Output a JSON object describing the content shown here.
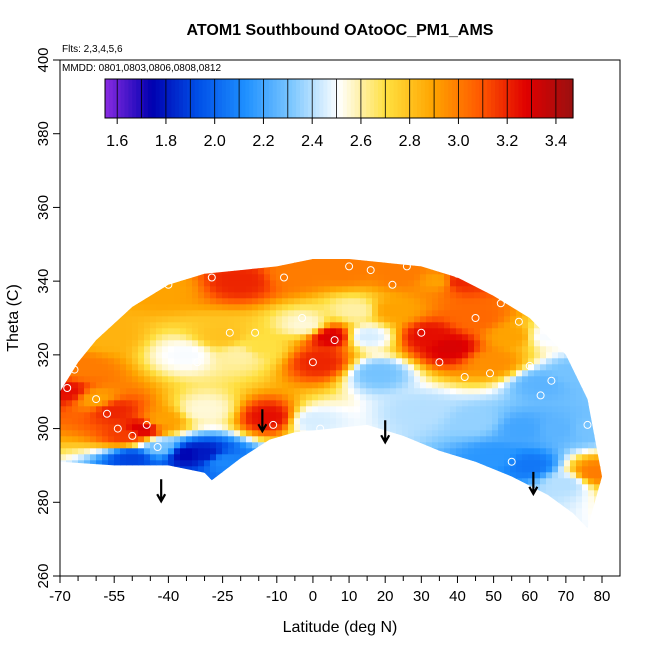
{
  "chart_data": {
    "type": "heatmap",
    "title": "ATOM1 Southbound OAtoOC_PM1_AMS",
    "annotations": {
      "flights": "Flts: 2,3,4,5,6",
      "dates": "MMDD: 0801,0803,0806,0808,0812"
    },
    "xlabel": "Latitude (deg N)",
    "ylabel": "Theta (C)",
    "xlim": [
      -70,
      80
    ],
    "ylim": [
      260,
      400
    ],
    "x_ticks": [
      "-70",
      "-55",
      "-40",
      "-25",
      "-10",
      "0",
      "10",
      "20",
      "30",
      "40",
      "50",
      "60",
      "70",
      "80"
    ],
    "x_tick_values": [
      -70,
      -55,
      -40,
      -25,
      -10,
      0,
      10,
      20,
      30,
      40,
      50,
      60,
      70,
      80
    ],
    "x_minor_ticks": [
      -65,
      -60,
      -50,
      -45,
      -35,
      -30,
      -20,
      -15,
      -5,
      5,
      15,
      25,
      35,
      45,
      55,
      65,
      75
    ],
    "y_ticks": [
      "260",
      "280",
      "300",
      "320",
      "340",
      "360",
      "380",
      "400"
    ],
    "y_tick_values": [
      260,
      280,
      300,
      320,
      340,
      360,
      380,
      400
    ],
    "colorbar": {
      "range": [
        1.55,
        3.47
      ],
      "ticks": [
        "1.6",
        "1.8",
        "2.0",
        "2.2",
        "2.4",
        "2.6",
        "2.8",
        "3.0",
        "3.2",
        "3.4"
      ],
      "tick_values": [
        1.6,
        1.8,
        2.0,
        2.2,
        2.4,
        2.6,
        2.8,
        3.0,
        3.2,
        3.4
      ],
      "colors": [
        "#8a2be2",
        "#0000b0",
        "#0050e8",
        "#1e90ff",
        "#7ec8ff",
        "#ffffff",
        "#ffe040",
        "#ffa500",
        "#ff5a00",
        "#e00000",
        "#9a1010"
      ]
    },
    "arrows": [
      {
        "lat": -42,
        "theta": 283
      },
      {
        "lat": -14,
        "theta": 302
      },
      {
        "lat": 20,
        "theta": 299
      },
      {
        "lat": 61,
        "theta": 285
      }
    ],
    "boundary_top": [
      [
        -70,
        310
      ],
      [
        -65,
        318
      ],
      [
        -60,
        324
      ],
      [
        -50,
        333
      ],
      [
        -40,
        339
      ],
      [
        -30,
        342
      ],
      [
        -20,
        343
      ],
      [
        -10,
        344
      ],
      [
        0,
        346
      ],
      [
        10,
        346
      ],
      [
        20,
        345
      ],
      [
        30,
        344
      ],
      [
        40,
        341
      ],
      [
        50,
        336
      ],
      [
        60,
        330
      ],
      [
        70,
        320
      ],
      [
        76,
        308
      ],
      [
        80,
        287
      ]
    ],
    "boundary_bottom": [
      [
        -70,
        291
      ],
      [
        -55,
        290
      ],
      [
        -40,
        290
      ],
      [
        -30,
        288
      ],
      [
        -28,
        286
      ],
      [
        -20,
        292
      ],
      [
        -12,
        297
      ],
      [
        -5,
        299
      ],
      [
        5,
        300
      ],
      [
        15,
        301
      ],
      [
        25,
        298
      ],
      [
        35,
        294
      ],
      [
        45,
        291
      ],
      [
        55,
        287
      ],
      [
        65,
        282
      ],
      [
        72,
        277
      ],
      [
        76,
        273
      ],
      [
        80,
        287
      ]
    ],
    "control_points": [
      {
        "lat": -68,
        "theta": 310,
        "value": 3.25
      },
      {
        "lat": -64,
        "theta": 316,
        "value": 3.0
      },
      {
        "lat": -60,
        "theta": 308,
        "value": 2.9
      },
      {
        "lat": -55,
        "theta": 305,
        "value": 3.2
      },
      {
        "lat": -52,
        "theta": 298,
        "value": 3.15
      },
      {
        "lat": -47,
        "theta": 300,
        "value": 3.3
      },
      {
        "lat": -42,
        "theta": 302,
        "value": 2.9
      },
      {
        "lat": -42,
        "theta": 295,
        "value": 2.3
      },
      {
        "lat": -50,
        "theta": 292,
        "value": 1.9
      },
      {
        "lat": -35,
        "theta": 293,
        "value": 1.75
      },
      {
        "lat": -30,
        "theta": 293,
        "value": 1.8
      },
      {
        "lat": -25,
        "theta": 291,
        "value": 2.1
      },
      {
        "lat": -58,
        "theta": 325,
        "value": 2.85
      },
      {
        "lat": -42,
        "theta": 338,
        "value": 2.9
      },
      {
        "lat": -35,
        "theta": 320,
        "value": 2.5
      },
      {
        "lat": -30,
        "theta": 305,
        "value": 2.55
      },
      {
        "lat": -25,
        "theta": 325,
        "value": 2.8
      },
      {
        "lat": -20,
        "theta": 340,
        "value": 3.2
      },
      {
        "lat": -20,
        "theta": 320,
        "value": 2.6
      },
      {
        "lat": -12,
        "theta": 303,
        "value": 3.25
      },
      {
        "lat": -15,
        "theta": 322,
        "value": 2.7
      },
      {
        "lat": -5,
        "theta": 342,
        "value": 3.0
      },
      {
        "lat": -2,
        "theta": 328,
        "value": 2.55
      },
      {
        "lat": 2,
        "theta": 318,
        "value": 3.2
      },
      {
        "lat": 5,
        "theta": 325,
        "value": 3.3
      },
      {
        "lat": 0,
        "theta": 302,
        "value": 2.45
      },
      {
        "lat": 8,
        "theta": 343,
        "value": 3.0
      },
      {
        "lat": 12,
        "theta": 332,
        "value": 2.6
      },
      {
        "lat": 15,
        "theta": 325,
        "value": 2.45
      },
      {
        "lat": 18,
        "theta": 315,
        "value": 2.3
      },
      {
        "lat": 22,
        "theta": 332,
        "value": 2.9
      },
      {
        "lat": 25,
        "theta": 342,
        "value": 3.0
      },
      {
        "lat": 32,
        "theta": 325,
        "value": 3.25
      },
      {
        "lat": 38,
        "theta": 322,
        "value": 3.3
      },
      {
        "lat": 40,
        "theta": 340,
        "value": 3.2
      },
      {
        "lat": 45,
        "theta": 330,
        "value": 3.05
      },
      {
        "lat": 50,
        "theta": 318,
        "value": 2.95
      },
      {
        "lat": 55,
        "theta": 325,
        "value": 2.9
      },
      {
        "lat": 65,
        "theta": 325,
        "value": 2.5
      },
      {
        "lat": 63,
        "theta": 312,
        "value": 2.25
      },
      {
        "lat": 58,
        "theta": 300,
        "value": 2.2
      },
      {
        "lat": 45,
        "theta": 302,
        "value": 2.35
      },
      {
        "lat": 30,
        "theta": 305,
        "value": 2.4
      },
      {
        "lat": 50,
        "theta": 292,
        "value": 2.15
      },
      {
        "lat": 60,
        "theta": 290,
        "value": 2.05
      },
      {
        "lat": 68,
        "theta": 300,
        "value": 2.25
      },
      {
        "lat": 72,
        "theta": 315,
        "value": 2.3
      },
      {
        "lat": 76,
        "theta": 300,
        "value": 2.3
      },
      {
        "lat": 78,
        "theta": 288,
        "value": 3.0
      },
      {
        "lat": 70,
        "theta": 285,
        "value": 2.4
      },
      {
        "lat": 35,
        "theta": 340,
        "value": 2.9
      }
    ],
    "sample_points": [
      {
        "lat": -68,
        "theta": 311
      },
      {
        "lat": -66,
        "theta": 316
      },
      {
        "lat": -60,
        "theta": 308
      },
      {
        "lat": -57,
        "theta": 304
      },
      {
        "lat": -54,
        "theta": 300
      },
      {
        "lat": -50,
        "theta": 298
      },
      {
        "lat": -46,
        "theta": 301
      },
      {
        "lat": -43,
        "theta": 295
      },
      {
        "lat": -40,
        "theta": 339
      },
      {
        "lat": -36,
        "theta": 342
      },
      {
        "lat": -32,
        "theta": 318
      },
      {
        "lat": -28,
        "theta": 341
      },
      {
        "lat": -23,
        "theta": 326
      },
      {
        "lat": -16,
        "theta": 326
      },
      {
        "lat": -11,
        "theta": 301
      },
      {
        "lat": -8,
        "theta": 341
      },
      {
        "lat": -3,
        "theta": 330
      },
      {
        "lat": 0,
        "theta": 318
      },
      {
        "lat": 2,
        "theta": 300
      },
      {
        "lat": 6,
        "theta": 324
      },
      {
        "lat": 10,
        "theta": 344
      },
      {
        "lat": 16,
        "theta": 343
      },
      {
        "lat": 18,
        "theta": 298
      },
      {
        "lat": 22,
        "theta": 339
      },
      {
        "lat": 26,
        "theta": 344
      },
      {
        "lat": 30,
        "theta": 326
      },
      {
        "lat": 35,
        "theta": 318
      },
      {
        "lat": 40,
        "theta": 342
      },
      {
        "lat": 42,
        "theta": 314
      },
      {
        "lat": 45,
        "theta": 330
      },
      {
        "lat": 49,
        "theta": 315
      },
      {
        "lat": 52,
        "theta": 334
      },
      {
        "lat": 55,
        "theta": 291
      },
      {
        "lat": 57,
        "theta": 329
      },
      {
        "lat": 60,
        "theta": 317
      },
      {
        "lat": 63,
        "theta": 309
      },
      {
        "lat": 66,
        "theta": 313
      },
      {
        "lat": 70,
        "theta": 333
      },
      {
        "lat": 73,
        "theta": 327
      },
      {
        "lat": 76,
        "theta": 301
      }
    ]
  }
}
